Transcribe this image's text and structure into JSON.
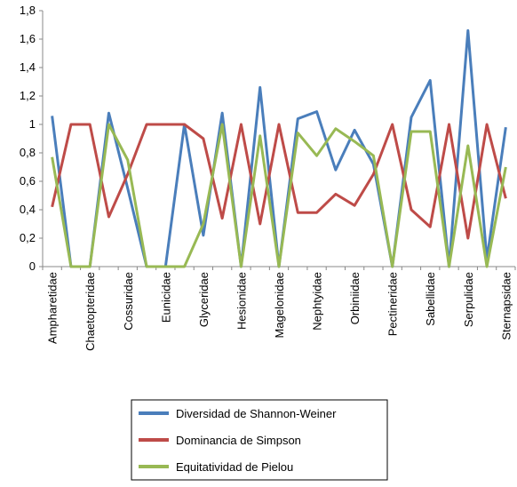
{
  "chart_data": {
    "type": "line",
    "categories": [
      "Ampharetidae",
      null,
      "Chaetopteridae",
      null,
      "Cossuridae",
      null,
      "Eunicidae",
      null,
      "Glyceridae",
      null,
      "Hesionidae",
      null,
      "Magelonidae",
      null,
      "Nephtyidae",
      null,
      "Orbiniidae",
      null,
      "Pectineridae",
      null,
      "Sabellidae",
      null,
      "Serpulidae",
      null,
      "Sternapsidae"
    ],
    "series": [
      {
        "name": "Diversidad de Shannon-Weiner",
        "color": "#4a7ebb",
        "values": [
          1.06,
          0,
          0,
          1.08,
          0.55,
          0,
          0,
          1.0,
          0.22,
          1.08,
          0,
          1.26,
          0,
          1.04,
          1.09,
          0.68,
          0.96,
          0.72,
          0,
          1.05,
          1.31,
          0,
          1.66,
          0.05,
          0.98
        ]
      },
      {
        "name": "Dominancia de Simpson",
        "color": "#be4b48",
        "values": [
          0.42,
          1.0,
          1.0,
          0.35,
          0.65,
          1.0,
          1.0,
          1.0,
          0.9,
          0.34,
          1.0,
          0.3,
          1.0,
          0.38,
          0.38,
          0.51,
          0.43,
          0.65,
          1.0,
          0.4,
          0.28,
          1.0,
          0.2,
          1.0,
          0.48
        ]
      },
      {
        "name": "Equitatividad de Pielou",
        "color": "#98b954",
        "values": [
          0.77,
          0,
          0,
          1.0,
          0.75,
          0,
          0,
          0,
          0.3,
          1.0,
          0,
          0.92,
          0,
          0.94,
          0.78,
          0.97,
          0.88,
          0.78,
          0,
          0.95,
          0.95,
          0,
          0.85,
          0,
          0.7
        ]
      }
    ],
    "ylim": [
      0,
      1.8
    ],
    "yticks": [
      0,
      {
        "value": 0.2,
        "label": "0,2"
      },
      {
        "value": 0.4,
        "label": "0,4"
      },
      {
        "value": 0.6,
        "label": "0,6"
      },
      {
        "value": 0.8,
        "label": "0,8"
      },
      1,
      {
        "value": 1.2,
        "label": "1,2"
      },
      {
        "value": 1.4,
        "label": "1,4"
      },
      {
        "value": 1.6,
        "label": "1,6"
      },
      {
        "value": 1.8,
        "label": "1,8"
      }
    ],
    "grid": false,
    "legend": "bottom"
  }
}
